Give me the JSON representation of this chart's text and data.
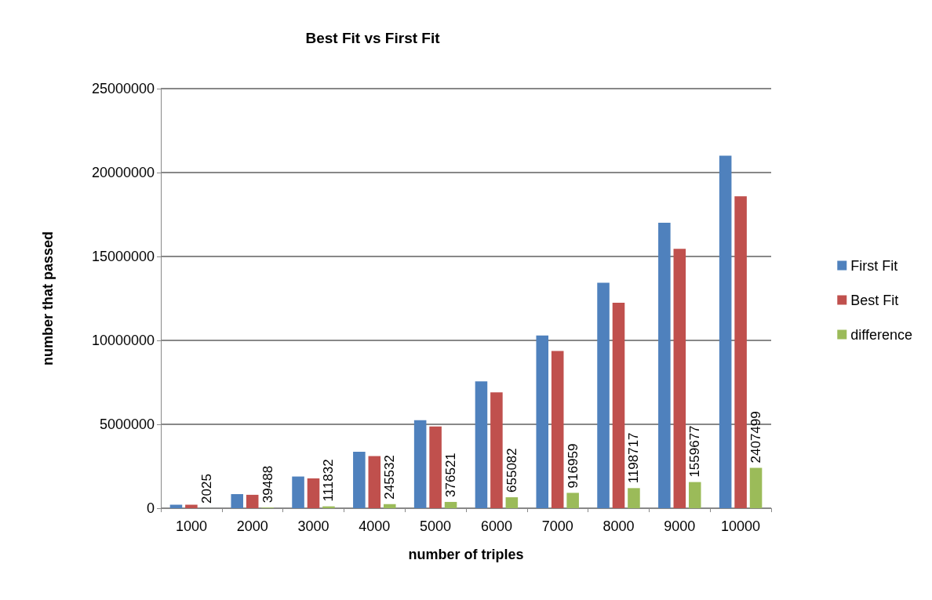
{
  "chart_data": {
    "type": "bar",
    "title": "Best Fit vs First Fit",
    "xlabel": "number of triples",
    "ylabel": "number that passed",
    "categories": [
      "1000",
      "2000",
      "3000",
      "4000",
      "5000",
      "6000",
      "7000",
      "8000",
      "9000",
      "10000"
    ],
    "series": [
      {
        "name": "First Fit",
        "color": "#4f81bd",
        "values": [
          210000,
          840000,
          1890000,
          3360000,
          5250000,
          7560000,
          10290000,
          13440000,
          17010000,
          21000000
        ]
      },
      {
        "name": "Best Fit",
        "color": "#c0504d",
        "values": [
          210000,
          800000,
          1780000,
          3110000,
          4870000,
          6900000,
          9370000,
          12240000,
          15450000,
          18590000
        ]
      },
      {
        "name": "difference",
        "color": "#9bbb59",
        "values": [
          2025,
          39488,
          111832,
          245532,
          376521,
          655082,
          916959,
          1198717,
          1559677,
          2407499
        ],
        "value_labels": [
          "2025",
          "39488",
          "111832",
          "245532",
          "376521",
          "655082",
          "916959",
          "1198717",
          "1559677",
          "2407499"
        ]
      }
    ],
    "ylim": [
      0,
      25000000
    ],
    "yticks": [
      0,
      5000000,
      10000000,
      15000000,
      20000000,
      25000000
    ],
    "grid": "y",
    "legend": "right"
  }
}
